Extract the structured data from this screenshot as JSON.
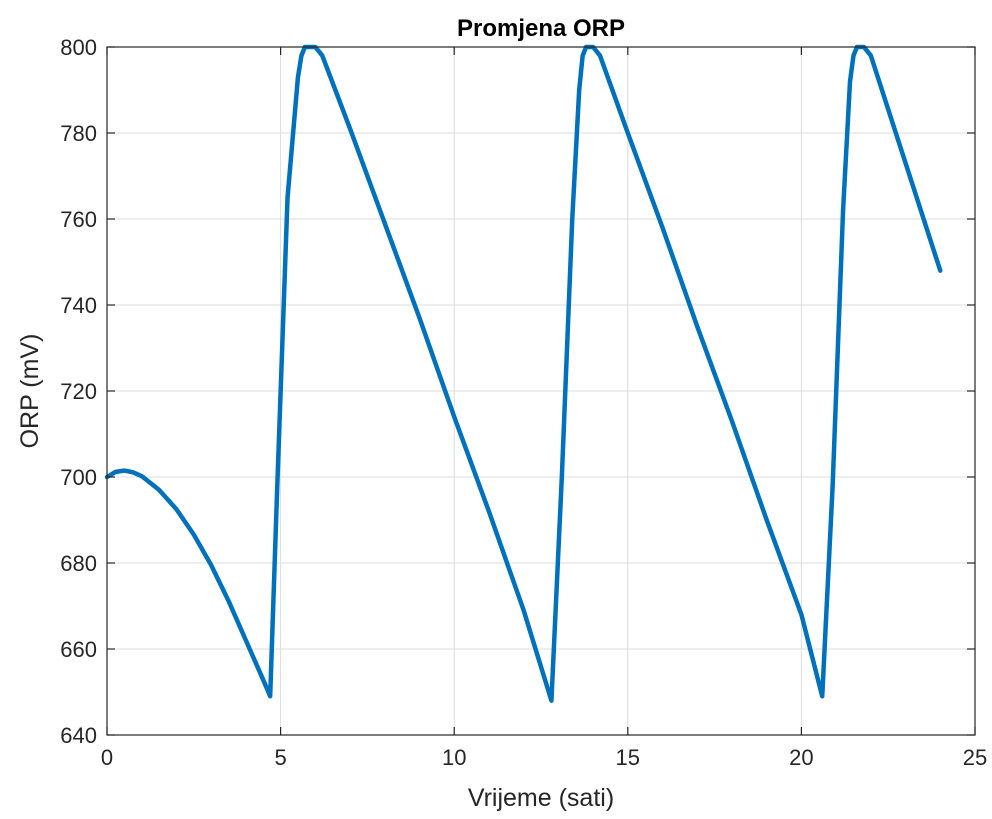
{
  "chart_data": {
    "type": "line",
    "title": "Promjena ORP",
    "xlabel": "Vrijeme (sati)",
    "ylabel": "ORP (mV)",
    "xlim": [
      0,
      25
    ],
    "ylim": [
      640,
      800
    ],
    "xticks": [
      0,
      5,
      10,
      15,
      20,
      25
    ],
    "yticks": [
      640,
      660,
      680,
      700,
      720,
      740,
      760,
      780,
      800
    ],
    "grid": true,
    "series_color": "#0072BD",
    "series": [
      {
        "x": [
          0,
          0.25,
          0.5,
          0.75,
          1.0,
          1.5,
          2.0,
          2.5,
          3.0,
          3.5,
          4.0,
          4.5,
          4.7,
          4.9,
          5.2,
          5.5,
          5.6,
          5.7,
          5.8,
          6.0,
          6.2,
          7.0,
          8.0,
          9.0,
          10.0,
          11.0,
          12.0,
          12.8,
          13.1,
          13.4,
          13.6,
          13.7,
          13.8,
          14.0,
          14.2,
          15.0,
          16.0,
          17.0,
          18.0,
          19.0,
          20.0,
          20.6,
          20.9,
          21.2,
          21.4,
          21.5,
          21.6,
          21.8,
          22.0,
          23.0,
          24.0
        ],
        "y": [
          700,
          701.2,
          701.5,
          701.1,
          700.2,
          697.0,
          692.5,
          686.6,
          679.5,
          671.2,
          662.0,
          652.8,
          649,
          697,
          765,
          793,
          798,
          800,
          800,
          800,
          798,
          781,
          759,
          737,
          714,
          692,
          669,
          648,
          700,
          760,
          790,
          798,
          800,
          800,
          798,
          780,
          758,
          735,
          713,
          690,
          668,
          649,
          698,
          762,
          792,
          798,
          800,
          800,
          798,
          773,
          748
        ]
      }
    ]
  }
}
